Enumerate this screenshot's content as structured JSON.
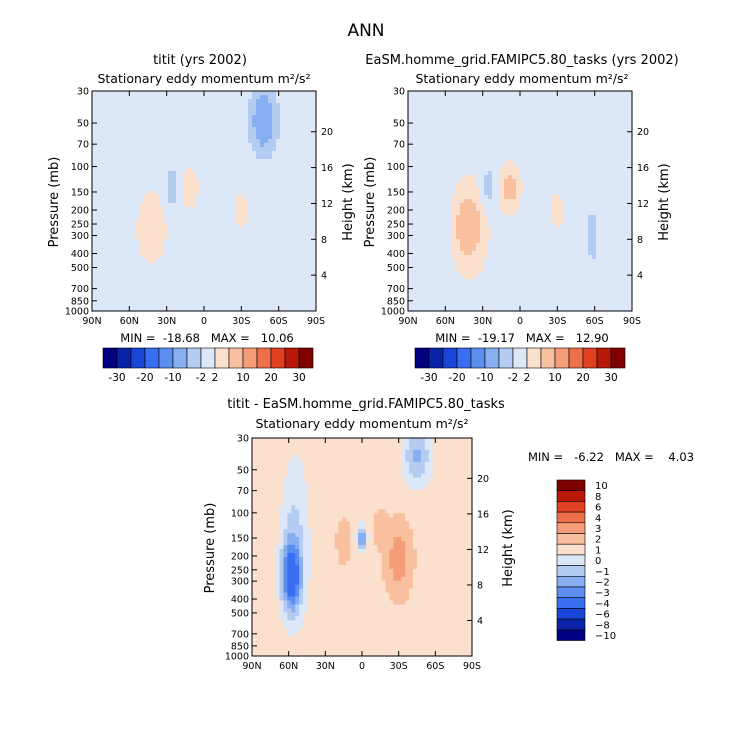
{
  "page_title": "ANN",
  "colors": {
    "main_scale": [
      "#000080",
      "#0a24a8",
      "#1a46d8",
      "#3a6ef0",
      "#5c8ef0",
      "#86aef0",
      "#b4ccf2",
      "#dce8f8",
      "#fbe0ce",
      "#f9c0a0",
      "#f59c78",
      "#ee7048",
      "#e04020",
      "#b81808",
      "#800000"
    ],
    "diff_scale": [
      "#000080",
      "#0a24a8",
      "#1a46d8",
      "#3a6ef0",
      "#5c8ef0",
      "#86aef0",
      "#b4ccf2",
      "#dce8f8",
      "#fbe0ce",
      "#f9c0a0",
      "#f59c78",
      "#ee7048",
      "#e04020",
      "#b81808",
      "#800000"
    ]
  },
  "chart_data": [
    {
      "type": "heatmap",
      "id": "panel-1",
      "title": "titit (yrs 2002)",
      "subtitle": "Stationary eddy momentum  m²/s²",
      "xlabel": "",
      "ylabel": "Pressure (mb)",
      "y2label": "Height (km)",
      "xticks": [
        "90N",
        "60N",
        "30N",
        "0",
        "30S",
        "60S",
        "90S"
      ],
      "xlim": [
        90,
        -90
      ],
      "yticks": [
        30,
        50,
        70,
        100,
        150,
        200,
        250,
        300,
        400,
        500,
        700,
        850,
        1000
      ],
      "ylim": [
        30,
        1000
      ],
      "y2ticks": [
        4,
        8,
        12,
        16,
        20
      ],
      "stats": "MIN =  -18.68   MAX =   10.06",
      "blobs": [
        {
          "lat": 45,
          "p": 260,
          "w": 14,
          "h": 0.6,
          "v": 4
        },
        {
          "lat": 12,
          "p": 140,
          "w": 8,
          "h": 0.35,
          "v": 3
        },
        {
          "lat": 25,
          "p": 140,
          "w": 6,
          "h": 0.35,
          "v": -6
        },
        {
          "lat": 60,
          "p": 200,
          "w": 14,
          "h": 1.3,
          "v": -2
        },
        {
          "lat": -48,
          "p": 48,
          "w": 12,
          "h": 0.6,
          "v": -9
        },
        {
          "lat": -70,
          "p": 300,
          "w": 8,
          "h": 0.8,
          "v": -2
        },
        {
          "lat": -30,
          "p": 200,
          "w": 8,
          "h": 0.35,
          "v": 2
        }
      ]
    },
    {
      "type": "heatmap",
      "id": "panel-2",
      "title": "EaSM.homme_grid.FAMIPC5.80_tasks (yrs 2002)",
      "subtitle": "Stationary eddy momentum  m²/s²",
      "xlabel": "",
      "ylabel": "Pressure (mb)",
      "y2label": "Height (km)",
      "xticks": [
        "90N",
        "60N",
        "30N",
        "0",
        "30S",
        "60S",
        "90S"
      ],
      "xlim": [
        90,
        -90
      ],
      "yticks": [
        30,
        50,
        70,
        100,
        150,
        200,
        250,
        300,
        400,
        500,
        700,
        850,
        1000
      ],
      "ylim": [
        30,
        1000
      ],
      "y2ticks": [
        4,
        8,
        12,
        16,
        20
      ],
      "stats": "MIN =  -19.17   MAX =   12.90",
      "blobs": [
        {
          "lat": 42,
          "p": 260,
          "w": 14,
          "h": 0.65,
          "v": 7
        },
        {
          "lat": 8,
          "p": 140,
          "w": 8,
          "h": 0.35,
          "v": 6
        },
        {
          "lat": 25,
          "p": 140,
          "w": 6,
          "h": 0.35,
          "v": -5
        },
        {
          "lat": 65,
          "p": 200,
          "w": 14,
          "h": 1.3,
          "v": -2
        },
        {
          "lat": -58,
          "p": 300,
          "w": 10,
          "h": 1.6,
          "v": -3
        },
        {
          "lat": -50,
          "p": 45,
          "w": 10,
          "h": 0.55,
          "v": -2
        },
        {
          "lat": -30,
          "p": 200,
          "w": 8,
          "h": 0.35,
          "v": 2
        }
      ]
    },
    {
      "type": "heatmap",
      "id": "panel-3",
      "title": "titit - EaSM.homme_grid.FAMIPC5.80_tasks",
      "subtitle": "Stationary eddy momentum  m²/s²",
      "xlabel": "",
      "ylabel": "Pressure (mb)",
      "y2label": "Height (km)",
      "xticks": [
        "90N",
        "60N",
        "30N",
        "0",
        "30S",
        "60S",
        "90S"
      ],
      "xlim": [
        90,
        -90
      ],
      "yticks": [
        30,
        50,
        70,
        100,
        150,
        200,
        250,
        300,
        400,
        500,
        700,
        850,
        1000
      ],
      "ylim": [
        30,
        1000
      ],
      "y2ticks": [
        4,
        8,
        12,
        16,
        20
      ],
      "stats": "MIN =   -6.22   MAX =    4.03",
      "blobs": [
        {
          "lat": 58,
          "p": 280,
          "w": 8,
          "h": 0.55,
          "v": -5
        },
        {
          "lat": 55,
          "p": 150,
          "w": 12,
          "h": 1.4,
          "v": -2
        },
        {
          "lat": 0,
          "p": 150,
          "w": 4,
          "h": 0.2,
          "v": -4
        },
        {
          "lat": -30,
          "p": 210,
          "w": 9,
          "h": 0.5,
          "v": 2
        },
        {
          "lat": -45,
          "p": 40,
          "w": 12,
          "h": 0.5,
          "v": -3
        },
        {
          "lat": 15,
          "p": 160,
          "w": 5,
          "h": 0.3,
          "v": 1
        },
        {
          "lat": -15,
          "p": 130,
          "w": 5,
          "h": 0.25,
          "v": 1
        }
      ]
    }
  ],
  "colorbar_main": {
    "labels": [
      "-30",
      "-20",
      "-10",
      "-2",
      "2",
      "10",
      "20",
      "30"
    ],
    "levels": [
      -30,
      -25,
      -20,
      -15,
      -10,
      -5,
      -2,
      2,
      5,
      10,
      15,
      20,
      25,
      30
    ]
  },
  "colorbar_diff": {
    "labels": [
      "10",
      "8",
      "6",
      "4",
      "3",
      "2",
      "1",
      "0",
      "−1",
      "−2",
      "−3",
      "−4",
      "−6",
      "−8",
      "−10"
    ],
    "levels": [
      -10,
      -8,
      -6,
      -4,
      -3,
      -2,
      -1,
      0,
      1,
      2,
      3,
      4,
      6,
      8,
      10
    ]
  }
}
